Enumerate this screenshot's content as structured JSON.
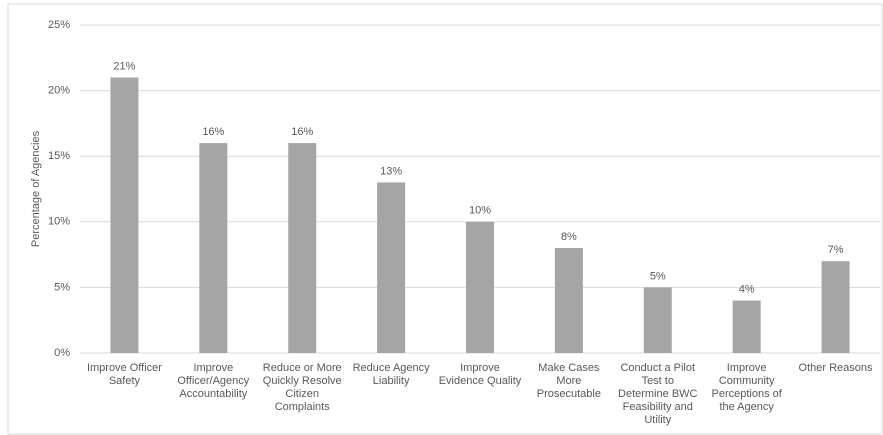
{
  "chart_data": {
    "type": "bar",
    "y_label": "Percentage of Agencies",
    "categories": [
      "Improve Officer Safety",
      "Improve Officer/Agency Accountability",
      "Reduce or More Quickly Resolve Citizen Complaints",
      "Reduce Agency Liability",
      "Improve Evidence Quality",
      "Make Cases More Prosecutable",
      "Conduct a Pilot Test to Determine BWC Feasibility and Utility",
      "Improve Community Perceptions of the Agency",
      "Other Reasons"
    ],
    "values": [
      21,
      16,
      16,
      13,
      10,
      8,
      5,
      4,
      7
    ],
    "value_labels": [
      "21%",
      "16%",
      "16%",
      "13%",
      "10%",
      "8%",
      "5%",
      "4%",
      "7%"
    ],
    "color": "#a5a5a5",
    "ylim": [
      0,
      25
    ],
    "yticks": [
      {
        "value": 0,
        "label": "0%"
      },
      {
        "value": 5,
        "label": "5%"
      },
      {
        "value": 10,
        "label": "10%"
      },
      {
        "value": 15,
        "label": "15%"
      },
      {
        "value": 20,
        "label": "20%"
      },
      {
        "value": 25,
        "label": "25%"
      }
    ],
    "grid": true
  }
}
